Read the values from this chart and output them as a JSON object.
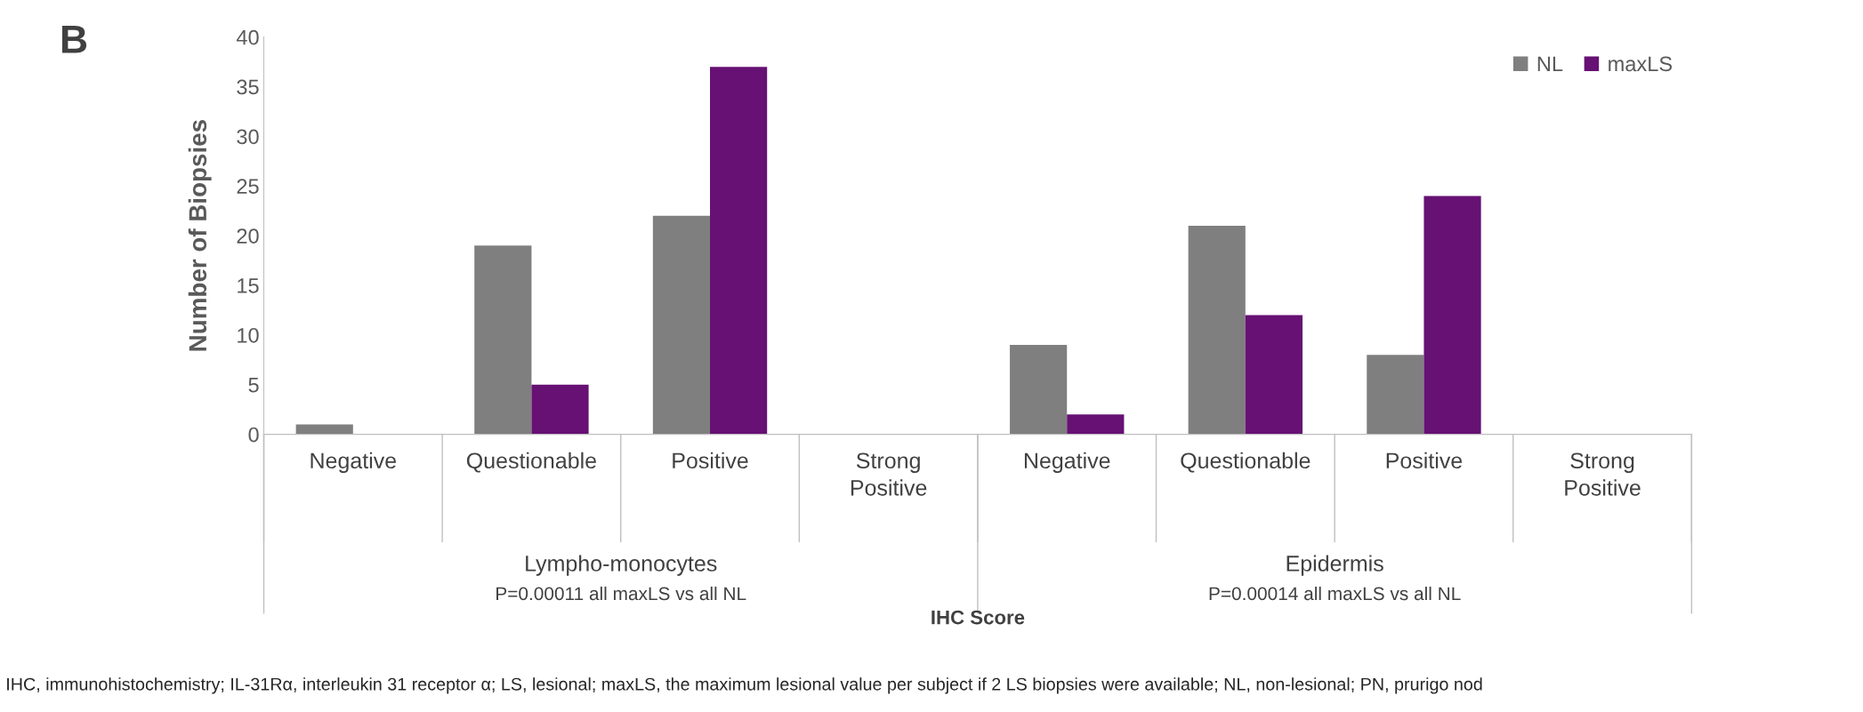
{
  "chart_data": {
    "type": "bar",
    "ylabel": "Number of Biopsies",
    "categories": [
      "Negative",
      "Questionable",
      "Positive",
      "Strong Positive",
      "Negative",
      "Questionable",
      "Positive",
      "Strong Positive"
    ],
    "series": [
      {
        "name": "NL",
        "color": "#7f7f7f",
        "values": [
          1,
          19,
          22,
          0,
          9,
          21,
          8,
          0
        ]
      },
      {
        "name": "maxLS",
        "color": "#661173",
        "values": [
          0,
          5,
          37,
          0,
          2,
          12,
          24,
          0
        ]
      }
    ],
    "ylim": [
      0,
      40
    ],
    "yticks": [
      0,
      5,
      10,
      15,
      20,
      25,
      30,
      35,
      40
    ],
    "grid": false,
    "legend": "top right",
    "annotations": [
      "B",
      "Lympho-monocytes",
      "P=0.00011 all maxLS vs all NL",
      "Epidermis",
      "P=0.00014 all maxLS vs all NL",
      "IHC Score",
      "IHC, immunohistochemistry; IL-31Rα, interleukin 31 receptor α; LS, lesional; maxLS, the maximum lesional value per subject if 2 LS biopsies were available; NL, non-lesional; PN, prurigo nod"
    ]
  }
}
